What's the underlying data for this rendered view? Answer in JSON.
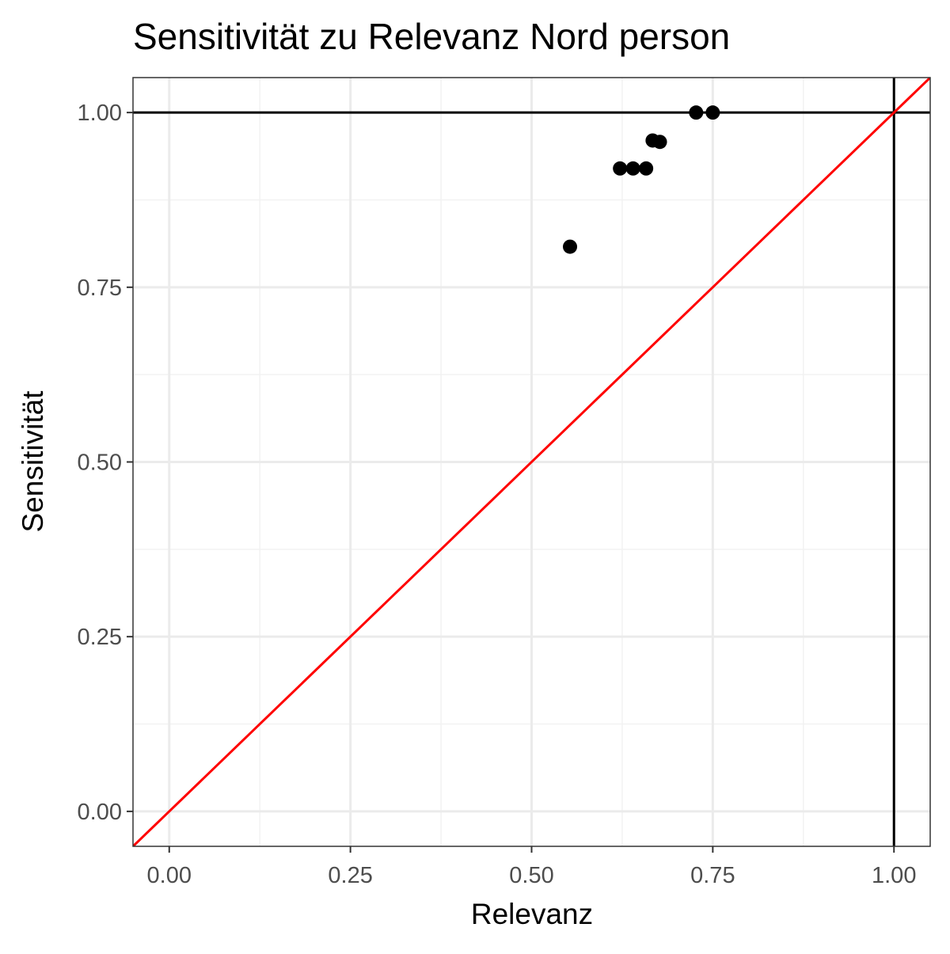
{
  "chart_data": {
    "type": "scatter",
    "title": "Sensitivität zu Relevanz Nord person",
    "xlabel": "Relevanz",
    "ylabel": "Sensitivität",
    "xlim": [
      -0.05,
      1.05
    ],
    "ylim": [
      -0.05,
      1.05
    ],
    "x_ticks": [
      0,
      0.25,
      0.5,
      0.75,
      1
    ],
    "y_ticks": [
      0,
      0.25,
      0.5,
      0.75,
      1
    ],
    "x_tick_labels": [
      "0.00",
      "0.25",
      "0.50",
      "0.75",
      "1.00"
    ],
    "y_tick_labels": [
      "0.00",
      "0.25",
      "0.50",
      "0.75",
      "1.00"
    ],
    "grid": true,
    "legend": "none",
    "points": [
      {
        "x": 0.553,
        "y": 0.808
      },
      {
        "x": 0.622,
        "y": 0.92
      },
      {
        "x": 0.64,
        "y": 0.92
      },
      {
        "x": 0.658,
        "y": 0.92
      },
      {
        "x": 0.667,
        "y": 0.96
      },
      {
        "x": 0.677,
        "y": 0.958
      },
      {
        "x": 0.727,
        "y": 1.0
      },
      {
        "x": 0.75,
        "y": 1.0
      }
    ],
    "reference_lines": [
      {
        "kind": "hline",
        "y": 1.0,
        "color": "#000000"
      },
      {
        "kind": "vline",
        "x": 1.0,
        "color": "#000000"
      },
      {
        "kind": "abline",
        "slope": 1,
        "intercept": 0,
        "color": "#ff0000"
      }
    ],
    "colors": {
      "points": "#000000",
      "diagonal": "#ff0000",
      "major_grid": "#ebebeb",
      "minor_grid": "#f2f2f2",
      "panel_border": "#333333",
      "tick_label": "#4d4d4d"
    }
  }
}
